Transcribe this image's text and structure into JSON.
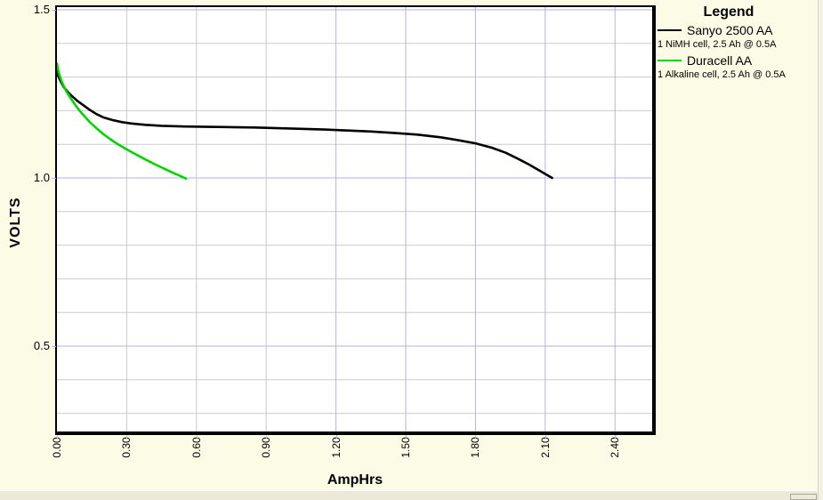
{
  "chart_data": {
    "type": "line",
    "title": "",
    "xlabel": "AmpHrs",
    "ylabel": "VOLTS",
    "xlim": [
      0,
      2.56
    ],
    "ylim": [
      0.246,
      1.508
    ],
    "legend_title": "Legend",
    "legend_position": "right",
    "grid_on": true,
    "xticks": [
      {
        "label": "0.00",
        "v": 0.0,
        "c": "#c9c9c9"
      },
      {
        "label": "0.30",
        "v": 0.3,
        "c": "#c9c9c9"
      },
      {
        "label": "0.60",
        "v": 0.6,
        "c": "#c9c9c9"
      },
      {
        "label": "0.90",
        "v": 0.9,
        "c": "#c9c9c9"
      },
      {
        "label": "1.20",
        "v": 1.2,
        "c": "#b2b2e6"
      },
      {
        "label": "1.50",
        "v": 1.5,
        "c": "#b2b2e6"
      },
      {
        "label": "1.80",
        "v": 1.8,
        "c": "#b2b2e6"
      },
      {
        "label": "2.10",
        "v": 2.1,
        "c": "#b2b2e6"
      },
      {
        "label": "2.40",
        "v": 2.4,
        "c": "#b2b2e6"
      }
    ],
    "yticks": [
      {
        "label": "1.5",
        "v": 1.5,
        "c": "#b2b2e6"
      },
      {
        "label": "1.0",
        "v": 1.0,
        "c": "#b2b2e6"
      },
      {
        "label": "0.5",
        "v": 0.5,
        "c": "#b2b2e6"
      }
    ],
    "grid": {
      "x": [
        {
          "v": 0.3,
          "c": "#c9c9c9"
        },
        {
          "v": 0.6,
          "c": "#c9c9c9"
        },
        {
          "v": 0.9,
          "c": "#c9c9c9"
        },
        {
          "v": 1.2,
          "c": "#b2b2e6"
        },
        {
          "v": 1.5,
          "c": "#b2b2e6"
        },
        {
          "v": 1.8,
          "c": "#b2b2e6"
        },
        {
          "v": 2.1,
          "c": "#b2b2e6"
        },
        {
          "v": 2.4,
          "c": "#b2b2e6"
        }
      ],
      "y": [
        {
          "v": 1.5,
          "c": "#b2b2e6"
        },
        {
          "v": 1.4,
          "c": "#cbcbcb"
        },
        {
          "v": 1.3,
          "c": "#cbcbcb"
        },
        {
          "v": 1.2,
          "c": "#cbcbcb"
        },
        {
          "v": 1.1,
          "c": "#cbcbcb"
        },
        {
          "v": 1.0,
          "c": "#b2b2e6"
        },
        {
          "v": 0.9,
          "c": "#cbcbcb"
        },
        {
          "v": 0.8,
          "c": "#cbcbcb"
        },
        {
          "v": 0.7,
          "c": "#cbcbcb"
        },
        {
          "v": 0.6,
          "c": "#cbcbcb"
        },
        {
          "v": 0.5,
          "c": "#b2b2e6"
        },
        {
          "v": 0.4,
          "c": "#cbcbcb"
        },
        {
          "v": 0.3,
          "c": "#cbcbcb"
        }
      ]
    },
    "series": [
      {
        "name": "Sanyo 2500 AA",
        "desc": "1 NiMH cell, 2.5 Ah @ 0.5A",
        "color": "#000000",
        "points": [
          [
            0.0,
            1.32
          ],
          [
            0.005,
            1.305
          ],
          [
            0.01,
            1.296
          ],
          [
            0.02,
            1.282
          ],
          [
            0.03,
            1.27
          ],
          [
            0.05,
            1.253
          ],
          [
            0.07,
            1.24
          ],
          [
            0.09,
            1.228
          ],
          [
            0.11,
            1.218
          ],
          [
            0.14,
            1.203
          ],
          [
            0.17,
            1.19
          ],
          [
            0.2,
            1.18
          ],
          [
            0.24,
            1.172
          ],
          [
            0.28,
            1.166
          ],
          [
            0.32,
            1.162
          ],
          [
            0.38,
            1.158
          ],
          [
            0.45,
            1.155
          ],
          [
            0.55,
            1.153
          ],
          [
            0.65,
            1.152
          ],
          [
            0.75,
            1.151
          ],
          [
            0.85,
            1.15
          ],
          [
            0.95,
            1.148
          ],
          [
            1.05,
            1.146
          ],
          [
            1.15,
            1.144
          ],
          [
            1.25,
            1.141
          ],
          [
            1.35,
            1.138
          ],
          [
            1.45,
            1.134
          ],
          [
            1.55,
            1.129
          ],
          [
            1.65,
            1.121
          ],
          [
            1.72,
            1.113
          ],
          [
            1.8,
            1.103
          ],
          [
            1.87,
            1.09
          ],
          [
            1.93,
            1.075
          ],
          [
            1.98,
            1.058
          ],
          [
            2.03,
            1.04
          ],
          [
            2.07,
            1.024
          ],
          [
            2.1,
            1.012
          ],
          [
            2.13,
            1.0
          ]
        ]
      },
      {
        "name": "Duracell AA",
        "desc": "1 Alkaline cell, 2.5 Ah @ 0.5A",
        "color": "#00d500",
        "points": [
          [
            0.0,
            1.34
          ],
          [
            0.005,
            1.322
          ],
          [
            0.01,
            1.308
          ],
          [
            0.02,
            1.288
          ],
          [
            0.03,
            1.272
          ],
          [
            0.04,
            1.258
          ],
          [
            0.06,
            1.236
          ],
          [
            0.08,
            1.216
          ],
          [
            0.1,
            1.198
          ],
          [
            0.12,
            1.182
          ],
          [
            0.14,
            1.167
          ],
          [
            0.17,
            1.148
          ],
          [
            0.2,
            1.13
          ],
          [
            0.23,
            1.115
          ],
          [
            0.26,
            1.101
          ],
          [
            0.3,
            1.085
          ],
          [
            0.34,
            1.07
          ],
          [
            0.38,
            1.055
          ],
          [
            0.42,
            1.041
          ],
          [
            0.46,
            1.028
          ],
          [
            0.5,
            1.015
          ],
          [
            0.53,
            1.006
          ],
          [
            0.555,
            0.998
          ]
        ]
      }
    ],
    "colors": {
      "window_background": "#fbfbe6",
      "plot_background": "#ffffff",
      "grid_minor": "#cbcbcb",
      "grid_major": "#b2b2e6",
      "plot_border": "#000000",
      "scrollbar_strip": "#ece9d8"
    }
  }
}
